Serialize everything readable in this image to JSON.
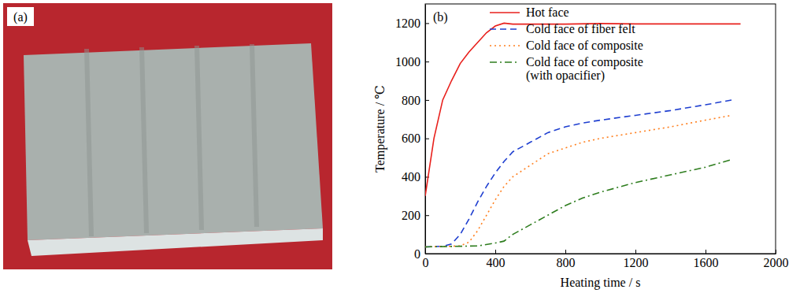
{
  "photo": {
    "label": "(a)"
  },
  "chart_data": {
    "type": "line",
    "panel_label": "(b)",
    "x_label": "Heating time / s",
    "y_label": "Temperature / ℃",
    "xlim": [
      0,
      2000
    ],
    "xticks": [
      0,
      400,
      800,
      1200,
      1600,
      2000
    ],
    "ylim": [
      0,
      1300
    ],
    "yticks": [
      0,
      200,
      400,
      600,
      800,
      1000,
      1200
    ],
    "grid": false,
    "legend": "upper right",
    "series": [
      {
        "name": "Hot face",
        "color": "#e8201c",
        "line_style": "solid",
        "x": [
          0,
          50,
          100,
          150,
          200,
          250,
          300,
          350,
          400,
          450,
          500,
          600,
          800,
          1000,
          1200,
          1400,
          1600,
          1800
        ],
        "values": [
          300,
          600,
          800,
          900,
          990,
          1050,
          1100,
          1150,
          1185,
          1200,
          1195,
          1195,
          1195,
          1198,
          1196,
          1196,
          1196,
          1196
        ]
      },
      {
        "name": "Cold face of fiber felt",
        "color": "#1f3fd0",
        "line_style": "dashed",
        "x": [
          0,
          100,
          150,
          200,
          250,
          300,
          350,
          400,
          450,
          500,
          600,
          700,
          800,
          900,
          1000,
          1200,
          1400,
          1600,
          1750
        ],
        "values": [
          35,
          38,
          50,
          100,
          180,
          270,
          350,
          420,
          480,
          530,
          580,
          630,
          660,
          680,
          695,
          720,
          745,
          775,
          800
        ]
      },
      {
        "name": "Cold face of composite",
        "color": "#ff7f1e",
        "line_style": "dotted",
        "x": [
          0,
          200,
          250,
          300,
          350,
          400,
          450,
          500,
          600,
          700,
          800,
          900,
          1000,
          1200,
          1400,
          1600,
          1750
        ],
        "values": [
          35,
          40,
          60,
          120,
          200,
          280,
          350,
          400,
          460,
          520,
          550,
          580,
          600,
          630,
          660,
          695,
          720
        ]
      },
      {
        "name": "Cold face of composite\n(with opacifier)",
        "color": "#2e7d1e",
        "line_style": "dashdot",
        "x": [
          0,
          300,
          400,
          450,
          500,
          600,
          700,
          800,
          900,
          1000,
          1200,
          1400,
          1600,
          1750
        ],
        "values": [
          35,
          40,
          55,
          65,
          100,
          150,
          200,
          250,
          290,
          320,
          370,
          410,
          450,
          490
        ]
      }
    ]
  }
}
